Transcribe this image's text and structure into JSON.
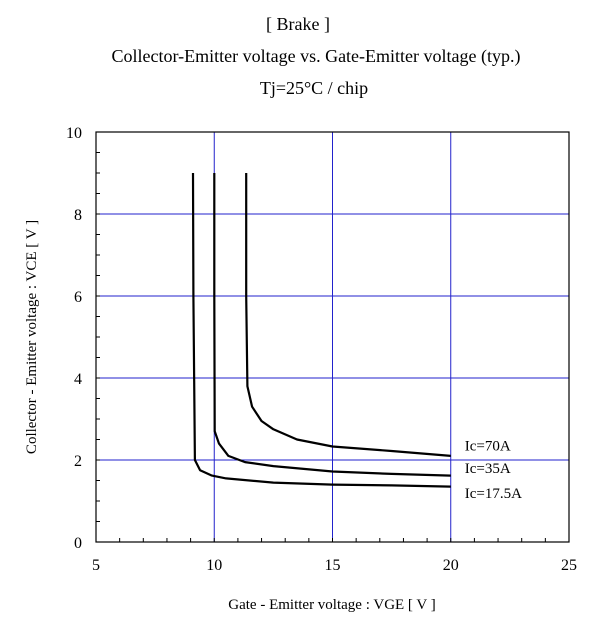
{
  "chart_data": {
    "type": "line",
    "title": "[ Brake ]",
    "subtitle": "Collector-Emitter voltage  vs. Gate-Emitter voltage (typ.)",
    "condition": "Tj=25°C / chip",
    "xlabel": "Gate - Emitter voltage  :  VGE  [ V ]",
    "ylabel": "Collector - Emitter voltage  :  VCE  [ V ]",
    "xlim": [
      5,
      25
    ],
    "ylim": [
      0,
      10
    ],
    "x_ticks": [
      5,
      10,
      15,
      20,
      25
    ],
    "y_ticks": [
      0,
      2,
      4,
      6,
      8,
      10
    ],
    "grid": true,
    "series": [
      {
        "name": "Ic=70A",
        "color": "#000000",
        "points": [
          [
            11.35,
            9.0
          ],
          [
            11.35,
            6.0
          ],
          [
            11.4,
            3.8
          ],
          [
            11.6,
            3.3
          ],
          [
            12.0,
            2.95
          ],
          [
            12.5,
            2.75
          ],
          [
            13.5,
            2.5
          ],
          [
            15.0,
            2.33
          ],
          [
            17.5,
            2.22
          ],
          [
            20.0,
            2.1
          ]
        ]
      },
      {
        "name": "Ic=35A",
        "color": "#000000",
        "points": [
          [
            10.0,
            9.0
          ],
          [
            10.0,
            6.0
          ],
          [
            10.02,
            2.7
          ],
          [
            10.2,
            2.4
          ],
          [
            10.6,
            2.1
          ],
          [
            11.3,
            1.95
          ],
          [
            12.5,
            1.85
          ],
          [
            15.0,
            1.72
          ],
          [
            17.5,
            1.66
          ],
          [
            20.0,
            1.62
          ]
        ]
      },
      {
        "name": "Ic=17.5A",
        "color": "#000000",
        "points": [
          [
            9.1,
            9.0
          ],
          [
            9.12,
            6.0
          ],
          [
            9.18,
            2.0
          ],
          [
            9.4,
            1.75
          ],
          [
            9.9,
            1.62
          ],
          [
            10.5,
            1.55
          ],
          [
            12.5,
            1.45
          ],
          [
            15.0,
            1.4
          ],
          [
            17.5,
            1.38
          ],
          [
            20.0,
            1.35
          ]
        ]
      }
    ]
  }
}
